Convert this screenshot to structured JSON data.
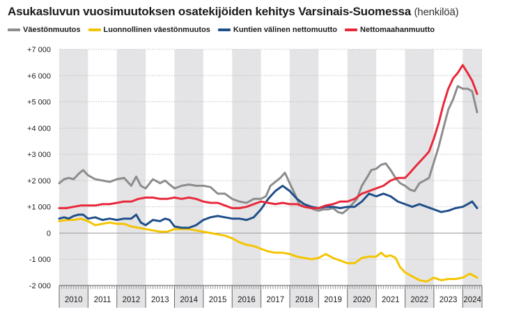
{
  "title": {
    "main": "Asukasluvun vuosimuutoksen osatekijöiden kehitys Varsinais-Suomessa",
    "unit": "(henkilöä)"
  },
  "chart_data": {
    "type": "line",
    "xlabel": "",
    "ylabel": "",
    "ylim": [
      -2000,
      7000
    ],
    "y_ticks": [
      -2000,
      -1000,
      0,
      1000,
      2000,
      3000,
      4000,
      5000,
      6000,
      7000
    ],
    "y_tick_labels": [
      "-2 000",
      "-1 000",
      "0",
      "+1 000",
      "+2 000",
      "+3 000",
      "+4 000",
      "+5 000",
      "+6 000",
      "+7 000"
    ],
    "years": [
      "2010",
      "2011",
      "2012",
      "2013",
      "2014",
      "2015",
      "2016",
      "2017",
      "2018",
      "2019",
      "2020",
      "2021",
      "2022",
      "2023",
      "2024"
    ],
    "xlim": [
      2010,
      2024.67
    ],
    "grid": "horizontal",
    "alternating_year_bands": true,
    "legend_position": "top",
    "series": [
      {
        "name": "Väestönmuutos",
        "color": "#8c8c8c",
        "points": [
          [
            2010.0,
            1900
          ],
          [
            2010.17,
            2050
          ],
          [
            2010.33,
            2100
          ],
          [
            2010.5,
            2050
          ],
          [
            2010.67,
            2250
          ],
          [
            2010.83,
            2400
          ],
          [
            2011.0,
            2200
          ],
          [
            2011.25,
            2050
          ],
          [
            2011.5,
            2000
          ],
          [
            2011.75,
            1950
          ],
          [
            2012.0,
            2050
          ],
          [
            2012.25,
            2100
          ],
          [
            2012.5,
            1800
          ],
          [
            2012.67,
            2150
          ],
          [
            2012.83,
            1800
          ],
          [
            2013.0,
            1700
          ],
          [
            2013.25,
            2050
          ],
          [
            2013.5,
            1900
          ],
          [
            2013.67,
            2000
          ],
          [
            2013.83,
            1850
          ],
          [
            2014.0,
            1700
          ],
          [
            2014.25,
            1800
          ],
          [
            2014.5,
            1850
          ],
          [
            2014.75,
            1800
          ],
          [
            2015.0,
            1800
          ],
          [
            2015.25,
            1750
          ],
          [
            2015.5,
            1500
          ],
          [
            2015.75,
            1500
          ],
          [
            2016.0,
            1300
          ],
          [
            2016.25,
            1200
          ],
          [
            2016.5,
            1150
          ],
          [
            2016.75,
            1300
          ],
          [
            2017.0,
            1300
          ],
          [
            2017.17,
            1400
          ],
          [
            2017.33,
            1800
          ],
          [
            2017.5,
            1950
          ],
          [
            2017.67,
            2100
          ],
          [
            2017.83,
            2300
          ],
          [
            2018.0,
            1900
          ],
          [
            2018.17,
            1500
          ],
          [
            2018.33,
            1100
          ],
          [
            2018.5,
            1000
          ],
          [
            2018.67,
            1000
          ],
          [
            2018.83,
            900
          ],
          [
            2019.0,
            850
          ],
          [
            2019.17,
            900
          ],
          [
            2019.33,
            900
          ],
          [
            2019.5,
            950
          ],
          [
            2019.67,
            800
          ],
          [
            2019.83,
            750
          ],
          [
            2020.0,
            900
          ],
          [
            2020.17,
            1100
          ],
          [
            2020.33,
            1300
          ],
          [
            2020.5,
            1800
          ],
          [
            2020.67,
            2100
          ],
          [
            2020.83,
            2400
          ],
          [
            2021.0,
            2450
          ],
          [
            2021.17,
            2600
          ],
          [
            2021.33,
            2650
          ],
          [
            2021.5,
            2400
          ],
          [
            2021.67,
            2100
          ],
          [
            2021.83,
            1900
          ],
          [
            2022.0,
            1800
          ],
          [
            2022.17,
            1650
          ],
          [
            2022.33,
            1600
          ],
          [
            2022.5,
            1900
          ],
          [
            2022.67,
            2000
          ],
          [
            2022.83,
            2100
          ],
          [
            2023.0,
            2700
          ],
          [
            2023.17,
            3300
          ],
          [
            2023.33,
            4000
          ],
          [
            2023.5,
            4700
          ],
          [
            2023.67,
            5100
          ],
          [
            2023.83,
            5600
          ],
          [
            2024.0,
            5500
          ],
          [
            2024.17,
            5500
          ],
          [
            2024.33,
            5400
          ],
          [
            2024.5,
            4600
          ]
        ]
      },
      {
        "name": "Luonnollinen väestönmuutos",
        "color": "#f5c400",
        "points": [
          [
            2010.0,
            450
          ],
          [
            2010.25,
            500
          ],
          [
            2010.5,
            500
          ],
          [
            2010.75,
            550
          ],
          [
            2011.0,
            450
          ],
          [
            2011.25,
            300
          ],
          [
            2011.5,
            350
          ],
          [
            2011.75,
            400
          ],
          [
            2012.0,
            350
          ],
          [
            2012.25,
            350
          ],
          [
            2012.5,
            250
          ],
          [
            2012.75,
            200
          ],
          [
            2013.0,
            150
          ],
          [
            2013.25,
            100
          ],
          [
            2013.5,
            50
          ],
          [
            2013.75,
            50
          ],
          [
            2014.0,
            150
          ],
          [
            2014.25,
            150
          ],
          [
            2014.5,
            150
          ],
          [
            2014.75,
            100
          ],
          [
            2015.0,
            50
          ],
          [
            2015.25,
            0
          ],
          [
            2015.5,
            -50
          ],
          [
            2015.75,
            -100
          ],
          [
            2016.0,
            -200
          ],
          [
            2016.25,
            -350
          ],
          [
            2016.5,
            -450
          ],
          [
            2016.75,
            -500
          ],
          [
            2017.0,
            -600
          ],
          [
            2017.25,
            -700
          ],
          [
            2017.5,
            -750
          ],
          [
            2017.75,
            -750
          ],
          [
            2018.0,
            -800
          ],
          [
            2018.25,
            -900
          ],
          [
            2018.5,
            -950
          ],
          [
            2018.75,
            -1000
          ],
          [
            2019.0,
            -950
          ],
          [
            2019.25,
            -800
          ],
          [
            2019.5,
            -950
          ],
          [
            2019.75,
            -1050
          ],
          [
            2020.0,
            -1150
          ],
          [
            2020.25,
            -1150
          ],
          [
            2020.5,
            -950
          ],
          [
            2020.75,
            -900
          ],
          [
            2021.0,
            -900
          ],
          [
            2021.17,
            -750
          ],
          [
            2021.33,
            -900
          ],
          [
            2021.5,
            -850
          ],
          [
            2021.67,
            -950
          ],
          [
            2021.83,
            -1300
          ],
          [
            2022.0,
            -1500
          ],
          [
            2022.25,
            -1650
          ],
          [
            2022.5,
            -1800
          ],
          [
            2022.75,
            -1850
          ],
          [
            2023.0,
            -1700
          ],
          [
            2023.25,
            -1800
          ],
          [
            2023.5,
            -1750
          ],
          [
            2023.75,
            -1750
          ],
          [
            2024.0,
            -1700
          ],
          [
            2024.25,
            -1550
          ],
          [
            2024.5,
            -1700
          ]
        ]
      },
      {
        "name": "Kuntien välinen nettomuutto",
        "color": "#1f4e89",
        "points": [
          [
            2010.0,
            550
          ],
          [
            2010.17,
            600
          ],
          [
            2010.33,
            550
          ],
          [
            2010.5,
            650
          ],
          [
            2010.67,
            700
          ],
          [
            2010.83,
            700
          ],
          [
            2011.0,
            550
          ],
          [
            2011.25,
            600
          ],
          [
            2011.5,
            500
          ],
          [
            2011.75,
            550
          ],
          [
            2012.0,
            500
          ],
          [
            2012.25,
            550
          ],
          [
            2012.5,
            550
          ],
          [
            2012.67,
            700
          ],
          [
            2012.83,
            400
          ],
          [
            2013.0,
            300
          ],
          [
            2013.25,
            500
          ],
          [
            2013.5,
            450
          ],
          [
            2013.67,
            550
          ],
          [
            2013.83,
            500
          ],
          [
            2014.0,
            250
          ],
          [
            2014.25,
            200
          ],
          [
            2014.5,
            200
          ],
          [
            2014.75,
            300
          ],
          [
            2015.0,
            500
          ],
          [
            2015.25,
            600
          ],
          [
            2015.5,
            650
          ],
          [
            2015.75,
            600
          ],
          [
            2016.0,
            550
          ],
          [
            2016.25,
            550
          ],
          [
            2016.5,
            500
          ],
          [
            2016.75,
            600
          ],
          [
            2017.0,
            900
          ],
          [
            2017.25,
            1300
          ],
          [
            2017.5,
            1600
          ],
          [
            2017.75,
            1800
          ],
          [
            2018.0,
            1600
          ],
          [
            2018.25,
            1300
          ],
          [
            2018.5,
            1100
          ],
          [
            2018.75,
            1000
          ],
          [
            2019.0,
            950
          ],
          [
            2019.25,
            1000
          ],
          [
            2019.5,
            1000
          ],
          [
            2019.75,
            950
          ],
          [
            2020.0,
            1000
          ],
          [
            2020.25,
            1000
          ],
          [
            2020.5,
            1200
          ],
          [
            2020.75,
            1500
          ],
          [
            2021.0,
            1400
          ],
          [
            2021.25,
            1500
          ],
          [
            2021.5,
            1400
          ],
          [
            2021.75,
            1200
          ],
          [
            2022.0,
            1100
          ],
          [
            2022.25,
            1000
          ],
          [
            2022.5,
            1100
          ],
          [
            2022.75,
            1000
          ],
          [
            2023.0,
            900
          ],
          [
            2023.25,
            800
          ],
          [
            2023.5,
            850
          ],
          [
            2023.75,
            950
          ],
          [
            2024.0,
            1000
          ],
          [
            2024.17,
            1100
          ],
          [
            2024.33,
            1200
          ],
          [
            2024.5,
            950
          ]
        ]
      },
      {
        "name": "Nettomaahanmuutto",
        "color": "#e8283a",
        "points": [
          [
            2010.0,
            950
          ],
          [
            2010.25,
            950
          ],
          [
            2010.5,
            1000
          ],
          [
            2010.75,
            1050
          ],
          [
            2011.0,
            1050
          ],
          [
            2011.25,
            1050
          ],
          [
            2011.5,
            1100
          ],
          [
            2011.75,
            1100
          ],
          [
            2012.0,
            1150
          ],
          [
            2012.25,
            1200
          ],
          [
            2012.5,
            1200
          ],
          [
            2012.75,
            1300
          ],
          [
            2013.0,
            1350
          ],
          [
            2013.25,
            1350
          ],
          [
            2013.5,
            1300
          ],
          [
            2013.75,
            1300
          ],
          [
            2014.0,
            1350
          ],
          [
            2014.25,
            1300
          ],
          [
            2014.5,
            1350
          ],
          [
            2014.75,
            1300
          ],
          [
            2015.0,
            1200
          ],
          [
            2015.25,
            1150
          ],
          [
            2015.5,
            1150
          ],
          [
            2015.75,
            1050
          ],
          [
            2016.0,
            950
          ],
          [
            2016.25,
            950
          ],
          [
            2016.5,
            1000
          ],
          [
            2016.75,
            1100
          ],
          [
            2017.0,
            1200
          ],
          [
            2017.25,
            1150
          ],
          [
            2017.5,
            1100
          ],
          [
            2017.75,
            1150
          ],
          [
            2018.0,
            1100
          ],
          [
            2018.25,
            1100
          ],
          [
            2018.5,
            1000
          ],
          [
            2018.75,
            950
          ],
          [
            2019.0,
            950
          ],
          [
            2019.25,
            1050
          ],
          [
            2019.5,
            1100
          ],
          [
            2019.75,
            1200
          ],
          [
            2020.0,
            1200
          ],
          [
            2020.25,
            1300
          ],
          [
            2020.5,
            1500
          ],
          [
            2020.75,
            1600
          ],
          [
            2021.0,
            1700
          ],
          [
            2021.25,
            1800
          ],
          [
            2021.5,
            2000
          ],
          [
            2021.75,
            2100
          ],
          [
            2022.0,
            2100
          ],
          [
            2022.17,
            2300
          ],
          [
            2022.33,
            2500
          ],
          [
            2022.5,
            2700
          ],
          [
            2022.67,
            2900
          ],
          [
            2022.83,
            3100
          ],
          [
            2023.0,
            3600
          ],
          [
            2023.17,
            4200
          ],
          [
            2023.33,
            4900
          ],
          [
            2023.5,
            5500
          ],
          [
            2023.67,
            5900
          ],
          [
            2023.83,
            6100
          ],
          [
            2024.0,
            6400
          ],
          [
            2024.17,
            6100
          ],
          [
            2024.33,
            5800
          ],
          [
            2024.5,
            5300
          ]
        ]
      }
    ]
  }
}
